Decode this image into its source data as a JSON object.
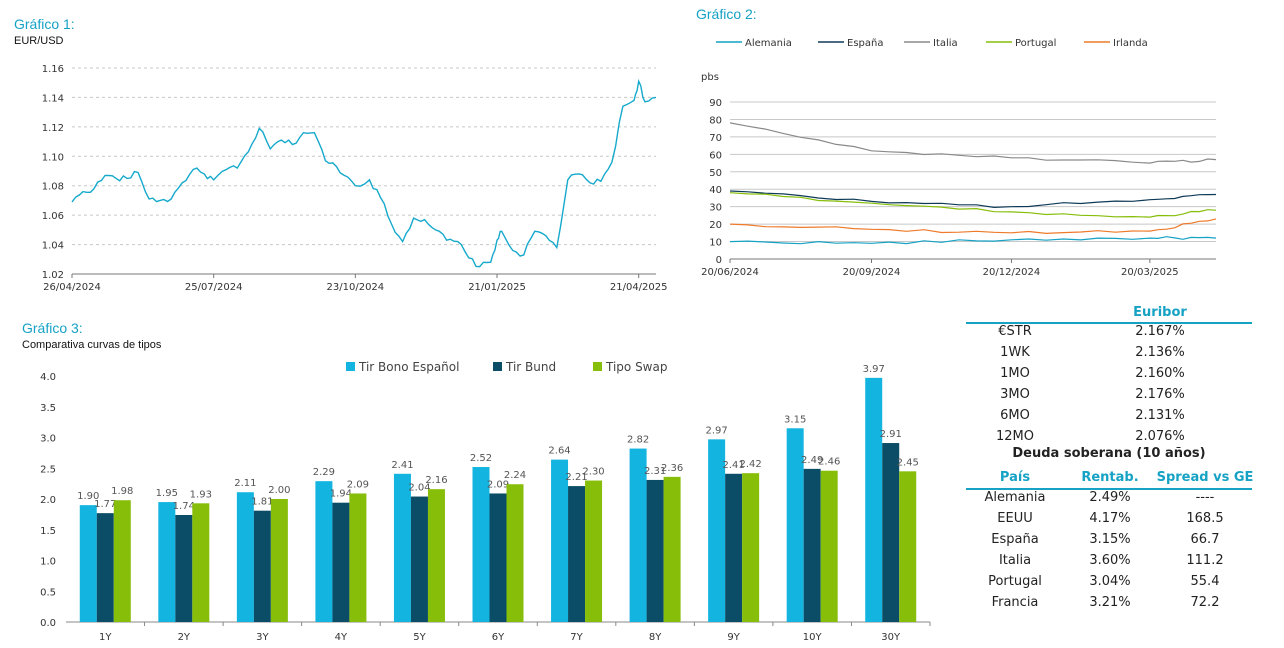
{
  "chart_data": [
    {
      "type": "line",
      "title": "Gráfico 1:",
      "subtitle": "EUR/USD",
      "ylim": [
        1.02,
        1.16
      ],
      "yticks": [
        "1.02",
        "1.04",
        "1.06",
        "1.08",
        "1.10",
        "1.12",
        "1.14",
        "1.16"
      ],
      "xticks": [
        "26/04/2024",
        "25/07/2024",
        "23/10/2024",
        "21/01/2025",
        "21/04/2025"
      ],
      "x_start": "26/04/2024",
      "x_end": "02/05/2025",
      "grid": true,
      "series": [
        {
          "color": "#16a9cc",
          "points": [
            [
              "26/04/2024",
              1.069
            ],
            [
              "03/05/2024",
              1.076
            ],
            [
              "10/05/2024",
              1.078
            ],
            [
              "17/05/2024",
              1.087
            ],
            [
              "24/05/2024",
              1.085
            ],
            [
              "31/05/2024",
              1.085
            ],
            [
              "07/06/2024",
              1.089
            ],
            [
              "14/06/2024",
              1.071
            ],
            [
              "21/06/2024",
              1.07
            ],
            [
              "28/06/2024",
              1.071
            ],
            [
              "05/07/2024",
              1.082
            ],
            [
              "12/07/2024",
              1.091
            ],
            [
              "19/07/2024",
              1.088
            ],
            [
              "25/07/2024",
              1.084
            ],
            [
              "02/08/2024",
              1.091
            ],
            [
              "09/08/2024",
              1.092
            ],
            [
              "16/08/2024",
              1.103
            ],
            [
              "23/08/2024",
              1.119
            ],
            [
              "30/08/2024",
              1.105
            ],
            [
              "06/09/2024",
              1.111
            ],
            [
              "13/09/2024",
              1.108
            ],
            [
              "20/09/2024",
              1.116
            ],
            [
              "27/09/2024",
              1.116
            ],
            [
              "04/10/2024",
              1.097
            ],
            [
              "11/10/2024",
              1.093
            ],
            [
              "18/10/2024",
              1.086
            ],
            [
              "23/10/2024",
              1.08
            ],
            [
              "01/11/2024",
              1.084
            ],
            [
              "08/11/2024",
              1.072
            ],
            [
              "15/11/2024",
              1.054
            ],
            [
              "22/11/2024",
              1.042
            ],
            [
              "29/11/2024",
              1.058
            ],
            [
              "06/12/2024",
              1.057
            ],
            [
              "13/12/2024",
              1.05
            ],
            [
              "20/12/2024",
              1.043
            ],
            [
              "27/12/2024",
              1.042
            ],
            [
              "03/01/2025",
              1.031
            ],
            [
              "10/01/2025",
              1.025
            ],
            [
              "17/01/2025",
              1.028
            ],
            [
              "21/01/2025",
              1.043
            ],
            [
              "24/01/2025",
              1.049
            ],
            [
              "31/01/2025",
              1.036
            ],
            [
              "07/02/2025",
              1.033
            ],
            [
              "14/02/2025",
              1.049
            ],
            [
              "21/02/2025",
              1.046
            ],
            [
              "28/02/2025",
              1.038
            ],
            [
              "07/03/2025",
              1.084
            ],
            [
              "14/03/2025",
              1.088
            ],
            [
              "21/03/2025",
              1.082
            ],
            [
              "28/03/2025",
              1.083
            ],
            [
              "04/04/2025",
              1.096
            ],
            [
              "11/04/2025",
              1.134
            ],
            [
              "18/04/2025",
              1.138
            ],
            [
              "21/04/2025",
              1.151
            ],
            [
              "25/04/2025",
              1.137
            ],
            [
              "02/05/2025",
              1.14
            ]
          ]
        }
      ]
    },
    {
      "type": "line",
      "title": "Gráfico 2:",
      "ylabel": "pbs",
      "ylim": [
        0,
        90
      ],
      "yticks": [
        "0",
        "10",
        "20",
        "30",
        "40",
        "50",
        "60",
        "70",
        "80",
        "90"
      ],
      "xticks": [
        "20/06/2024",
        "20/09/2024",
        "20/12/2024",
        "20/03/2025"
      ],
      "x_start": "20/06/2024",
      "x_end": "02/05/2025",
      "grid": true,
      "legend": "top",
      "series": [
        {
          "name": "Alemania",
          "color": "#16a2c4",
          "points": [
            [
              "20/06/2024",
              10
            ],
            [
              "20/09/2024",
              9
            ],
            [
              "20/12/2024",
              11
            ],
            [
              "20/03/2025",
              12
            ],
            [
              "02/05/2025",
              12
            ]
          ]
        },
        {
          "name": "España",
          "color": "#0e3a58",
          "points": [
            [
              "20/06/2024",
              39
            ],
            [
              "20/09/2024",
              33
            ],
            [
              "20/12/2024",
              30
            ],
            [
              "20/03/2025",
              34
            ],
            [
              "02/05/2025",
              37
            ]
          ]
        },
        {
          "name": "Italia",
          "color": "#8a8a8a",
          "points": [
            [
              "20/06/2024",
              78
            ],
            [
              "20/09/2024",
              62
            ],
            [
              "20/12/2024",
              58
            ],
            [
              "20/03/2025",
              55
            ],
            [
              "02/05/2025",
              57
            ]
          ]
        },
        {
          "name": "Portugal",
          "color": "#86be0a",
          "points": [
            [
              "20/06/2024",
              38
            ],
            [
              "20/09/2024",
              32
            ],
            [
              "20/12/2024",
              27
            ],
            [
              "20/03/2025",
              24
            ],
            [
              "02/05/2025",
              28
            ]
          ]
        },
        {
          "name": "Irlanda",
          "color": "#ee7a2a",
          "points": [
            [
              "20/06/2024",
              20
            ],
            [
              "20/09/2024",
              17
            ],
            [
              "20/12/2024",
              15
            ],
            [
              "20/03/2025",
              16
            ],
            [
              "02/05/2025",
              23
            ]
          ]
        }
      ]
    },
    {
      "type": "bar",
      "title": "Gráfico 3:",
      "subtitle": "Comparativa curvas de tipos",
      "categories": [
        "1Y",
        "2Y",
        "3Y",
        "4Y",
        "5Y",
        "6Y",
        "7Y",
        "8Y",
        "9Y",
        "10Y",
        "30Y"
      ],
      "ylim": [
        0,
        4
      ],
      "yticks": [
        "0.0",
        "0.5",
        "1.0",
        "1.5",
        "2.0",
        "2.5",
        "3.0",
        "3.5",
        "4.0"
      ],
      "legend": "top",
      "series": [
        {
          "name": "Tir Bono Español",
          "color": "#13b5e0",
          "values": [
            1.9,
            1.95,
            2.11,
            2.29,
            2.41,
            2.52,
            2.64,
            2.82,
            2.97,
            3.15,
            3.97
          ],
          "labels": [
            "1.90",
            "1.95",
            "2.11",
            "2.29",
            "2.41",
            "2.52",
            "2.64",
            "2.82",
            "2.97",
            "3.15",
            "3.97"
          ]
        },
        {
          "name": "Tir Bund",
          "color": "#0b4d66",
          "values": [
            1.77,
            1.74,
            1.81,
            1.94,
            2.04,
            2.09,
            2.21,
            2.31,
            2.41,
            2.49,
            2.91
          ],
          "labels": [
            "1.77",
            "1.74",
            "1.81",
            "1.94",
            "2.04",
            "2.09",
            "2.21",
            "2.31",
            "2.41",
            "2.49",
            "2.91"
          ]
        },
        {
          "name": "Tipo Swap",
          "color": "#86be0a",
          "values": [
            1.98,
            1.93,
            2.0,
            2.09,
            2.16,
            2.24,
            2.3,
            2.36,
            2.42,
            2.46,
            2.45
          ],
          "labels": [
            "1.98",
            "1.93",
            "2.00",
            "2.09",
            "2.16",
            "2.24",
            "2.30",
            "2.36",
            "2.42",
            "2.46",
            "2.45"
          ]
        }
      ]
    }
  ],
  "table": {
    "euribor_header": "Euribor",
    "euribor": [
      {
        "tenor": "€STR",
        "value": "2.167%"
      },
      {
        "tenor": "1WK",
        "value": "2.136%"
      },
      {
        "tenor": "1MO",
        "value": "2.160%"
      },
      {
        "tenor": "3MO",
        "value": "2.176%"
      },
      {
        "tenor": "6MO",
        "value": "2.131%"
      },
      {
        "tenor": "12MO",
        "value": "2.076%"
      }
    ],
    "sovereign_title": "Deuda soberana (10 años)",
    "sovereign_headers": [
      "País",
      "Rentab.",
      "Spread vs GE"
    ],
    "sovereign": [
      {
        "country": "Alemania",
        "yield": "2.49%",
        "spread": "----"
      },
      {
        "country": "EEUU",
        "yield": "4.17%",
        "spread": "168.5"
      },
      {
        "country": "España",
        "yield": "3.15%",
        "spread": "66.7"
      },
      {
        "country": "Italia",
        "yield": "3.60%",
        "spread": "111.2"
      },
      {
        "country": "Portugal",
        "yield": "3.04%",
        "spread": "55.4"
      },
      {
        "country": "Francia",
        "yield": "3.21%",
        "spread": "72.2"
      }
    ],
    "accent": "#16a2c4"
  }
}
